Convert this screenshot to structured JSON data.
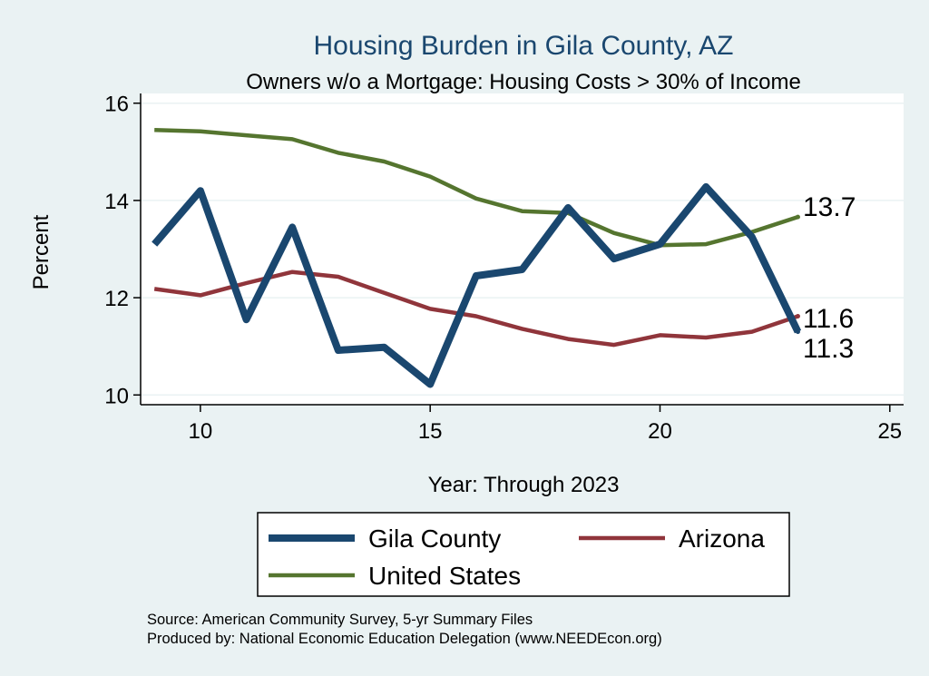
{
  "chart_data": {
    "type": "line",
    "title": "Housing Burden in Gila County, AZ",
    "subtitle": "Owners w/o a Mortgage: Housing Costs > 30% of Income",
    "xlabel": "Year: Through 2023",
    "ylabel": "Percent",
    "xlim": [
      8.7,
      25.3
    ],
    "ylim": [
      9.8,
      16.2
    ],
    "xticks": [
      10,
      15,
      20,
      25
    ],
    "yticks": [
      10,
      12,
      14,
      16
    ],
    "grid": true,
    "legend_position": "bottom",
    "x": [
      9,
      10,
      11,
      12,
      13,
      14,
      15,
      16,
      17,
      18,
      19,
      20,
      21,
      22,
      23
    ],
    "series": [
      {
        "name": "Gila County",
        "color": "#1a476f",
        "values": [
          13.1,
          14.2,
          11.55,
          13.45,
          10.92,
          10.98,
          10.22,
          12.45,
          12.58,
          13.85,
          12.8,
          13.1,
          14.28,
          13.25,
          11.3
        ],
        "end_label": "11.3"
      },
      {
        "name": "United States",
        "color": "#55752f",
        "values": [
          15.45,
          15.42,
          15.34,
          15.26,
          14.98,
          14.8,
          14.49,
          14.04,
          13.78,
          13.74,
          13.33,
          13.08,
          13.1,
          13.35,
          13.66
        ],
        "end_label": "13.7"
      },
      {
        "name": "Arizona",
        "color": "#90353b",
        "values": [
          12.18,
          12.05,
          12.3,
          12.53,
          12.43,
          12.1,
          11.77,
          11.62,
          11.36,
          11.15,
          11.03,
          11.23,
          11.18,
          11.3,
          11.62
        ],
        "end_label": "11.6"
      }
    ],
    "legend": [
      {
        "name": "Gila County",
        "color": "#1a476f"
      },
      {
        "name": "Arizona",
        "color": "#90353b"
      },
      {
        "name": "United States",
        "color": "#55752f"
      }
    ],
    "source_lines": [
      "Source: American Community Survey, 5-yr Summary Files",
      "Produced by: National Economic Education Delegation (www.NEEDEcon.org)"
    ]
  }
}
